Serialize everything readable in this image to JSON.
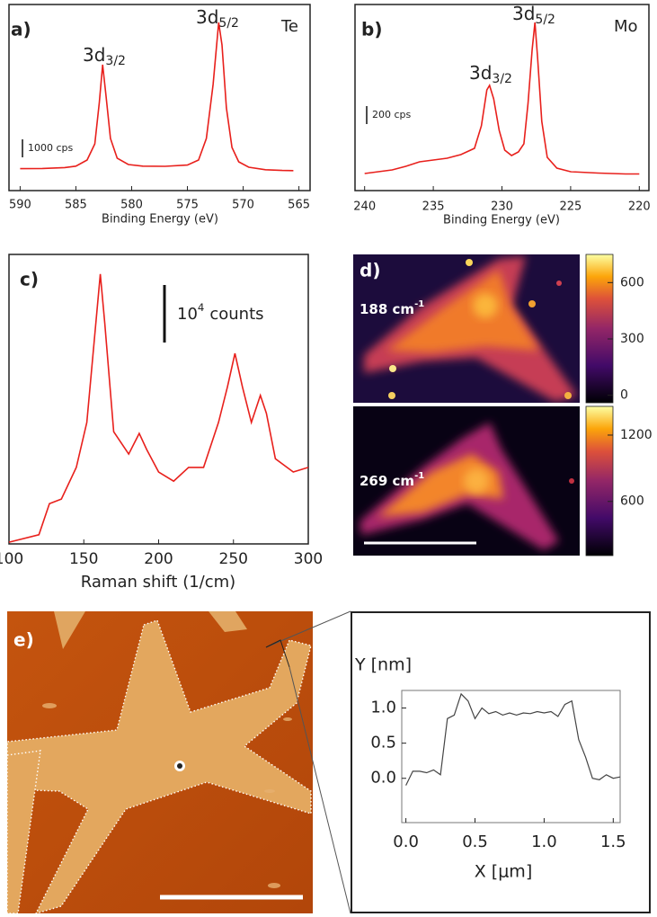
{
  "chart_data": [
    {
      "type": "line",
      "panel_label": "a)",
      "element": "Te",
      "xlabel": "Binding Energy (eV)",
      "color": "#e8201c",
      "x": [
        590,
        588,
        586,
        585,
        584,
        583.3,
        582.9,
        582.6,
        582.3,
        581.9,
        581.3,
        580.3,
        579,
        577,
        575,
        574,
        573.3,
        572.7,
        572.2,
        571.9,
        571.5,
        571,
        570.4,
        569.5,
        568,
        566.5,
        565.5
      ],
      "values": [
        120,
        130,
        180,
        260,
        600,
        1500,
        3800,
        5900,
        4200,
        1800,
        700,
        350,
        260,
        250,
        320,
        600,
        1800,
        4800,
        8250,
        7000,
        3500,
        1300,
        500,
        200,
        60,
        20,
        10
      ],
      "xlim": [
        591,
        564
      ],
      "xticks": [
        590,
        585,
        580,
        575,
        570,
        565
      ],
      "ylim": [
        -1100,
        9250
      ],
      "scale_bar": {
        "value": 1000,
        "label": "1000 cps"
      },
      "annotations": [
        {
          "text": "3d",
          "sub": "3/2"
        },
        {
          "text": "3d",
          "sub": "5/2"
        }
      ]
    },
    {
      "type": "line",
      "panel_label": "b)",
      "element": "Mo",
      "xlabel": "Binding Energy (eV)",
      "color": "#e8201c",
      "x": [
        240,
        239,
        238,
        237,
        236,
        235,
        234,
        233,
        232,
        231.5,
        231.1,
        230.9,
        230.6,
        230.2,
        229.8,
        229.3,
        228.8,
        228.4,
        228.1,
        227.8,
        227.6,
        227.4,
        227.1,
        226.7,
        226,
        225,
        223,
        221,
        220
      ],
      "values": [
        20,
        40,
        60,
        100,
        150,
        170,
        190,
        230,
        300,
        550,
        950,
        1000,
        850,
        500,
        280,
        220,
        260,
        350,
        800,
        1400,
        1700,
        1300,
        600,
        200,
        80,
        40,
        25,
        15,
        15
      ],
      "xlim": [
        240.7,
        219.3
      ],
      "xticks": [
        240,
        235,
        230,
        225,
        220
      ],
      "ylim": [
        -170,
        1900
      ],
      "scale_bar": {
        "value": 200,
        "label": "200 cps"
      },
      "annotations": [
        {
          "text": "3d",
          "sub": "3/2"
        },
        {
          "text": "3d",
          "sub": "5/2"
        }
      ]
    },
    {
      "type": "line",
      "panel_label": "c)",
      "xlabel": "Raman shift (1/cm)",
      "color": "#e8201c",
      "x": [
        100,
        120,
        127,
        135,
        145,
        152,
        158,
        161,
        164,
        170,
        180,
        187,
        192,
        200,
        210,
        220,
        230,
        240,
        246,
        251,
        256,
        262,
        268,
        272,
        278,
        290,
        300
      ],
      "values": [
        300,
        1600,
        7000,
        7800,
        13300,
        21100,
        38300,
        46900,
        38300,
        19500,
        15600,
        19200,
        16400,
        12500,
        10900,
        13300,
        13300,
        21100,
        27300,
        33100,
        27300,
        21100,
        25800,
        22700,
        14800,
        12500,
        13300
      ],
      "xlim": [
        100,
        300
      ],
      "xticks": [
        100,
        150,
        200,
        250,
        300
      ],
      "ylim": [
        0,
        50300
      ],
      "scale_bar": {
        "value": 10000,
        "label": "10",
        "label_sup": "4",
        "label_unit": "counts"
      }
    },
    {
      "type": "heatmap",
      "panel_label": "d)",
      "maps": [
        {
          "label": "188 cm",
          "label_sup": "-1",
          "clim": [
            -40,
            750
          ],
          "cticks": [
            0,
            300,
            600
          ]
        },
        {
          "label": "269 cm",
          "label_sup": "-1",
          "clim": [
            110,
            1460
          ],
          "cticks": [
            600,
            1200
          ]
        }
      ]
    },
    {
      "type": "image",
      "panel_label": "e)"
    },
    {
      "type": "line",
      "xlabel": "X [μm]",
      "ylabel": "Y [nm]",
      "color": "#444444",
      "x": [
        0,
        0.05,
        0.1,
        0.15,
        0.2,
        0.25,
        0.3,
        0.35,
        0.4,
        0.45,
        0.5,
        0.55,
        0.6,
        0.65,
        0.7,
        0.75,
        0.8,
        0.85,
        0.9,
        0.95,
        1.0,
        1.05,
        1.1,
        1.15,
        1.2,
        1.25,
        1.3,
        1.35,
        1.4,
        1.45,
        1.5,
        1.55
      ],
      "values": [
        -0.1,
        0.1,
        0.1,
        0.08,
        0.12,
        0.05,
        0.85,
        0.9,
        1.2,
        1.1,
        0.85,
        1.0,
        0.92,
        0.95,
        0.9,
        0.93,
        0.9,
        0.93,
        0.92,
        0.95,
        0.93,
        0.95,
        0.88,
        1.05,
        1.1,
        0.55,
        0.3,
        0.0,
        -0.02,
        0.05,
        0.0,
        0.02
      ],
      "xlim": [
        -0.03,
        1.55
      ],
      "ylim": [
        -0.63,
        1.25
      ],
      "xticks": [
        {
          "value": 0,
          "label": "0.0"
        },
        {
          "value": 0.5,
          "label": "0.5"
        },
        {
          "value": 1,
          "label": "1.0"
        },
        {
          "value": 1.5,
          "label": "1.5"
        }
      ],
      "yticks": [
        {
          "value": 0,
          "label": "0.0"
        },
        {
          "value": 0.5,
          "label": "0.5"
        },
        {
          "value": 1,
          "label": "1.0"
        }
      ]
    }
  ]
}
